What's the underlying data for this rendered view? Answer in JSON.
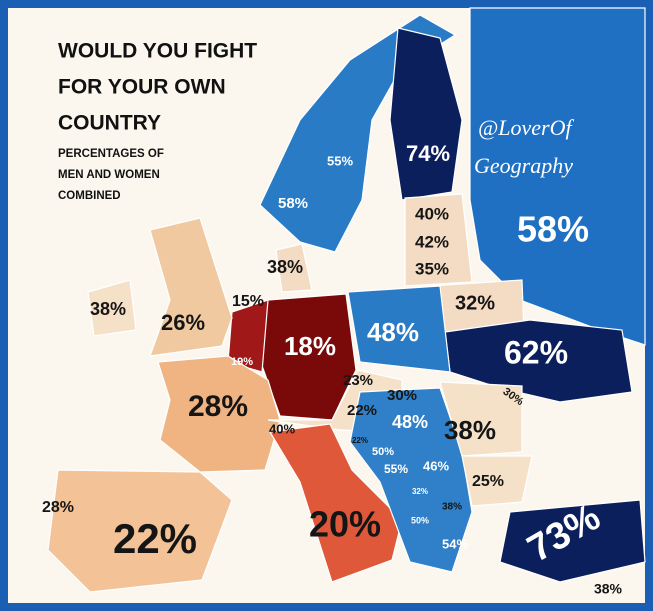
{
  "header": {
    "title_lines": [
      "WOULD YOU FIGHT",
      "FOR YOUR OWN",
      "COUNTRY"
    ],
    "subtitle_lines": [
      "PERCENTAGES OF",
      "MEN AND WOMEN",
      "COMBINED"
    ],
    "watermark_lines": [
      "@LoverOf",
      "Geography"
    ]
  },
  "labels": [
    "74%",
    "55%",
    "58%",
    "58%",
    "40%",
    "42%",
    "35%",
    "38%",
    "32%",
    "38%",
    "26%",
    "15%",
    "18%",
    "48%",
    "62%",
    "19%",
    "23%",
    "28%",
    "30%",
    "30%",
    "22%",
    "48%",
    "38%",
    "40%",
    "22%",
    "50%",
    "55%",
    "46%",
    "25%",
    "32%",
    "38%",
    "28%",
    "22%",
    "20%",
    "50%",
    "54%",
    "73%",
    "38%"
  ]
}
